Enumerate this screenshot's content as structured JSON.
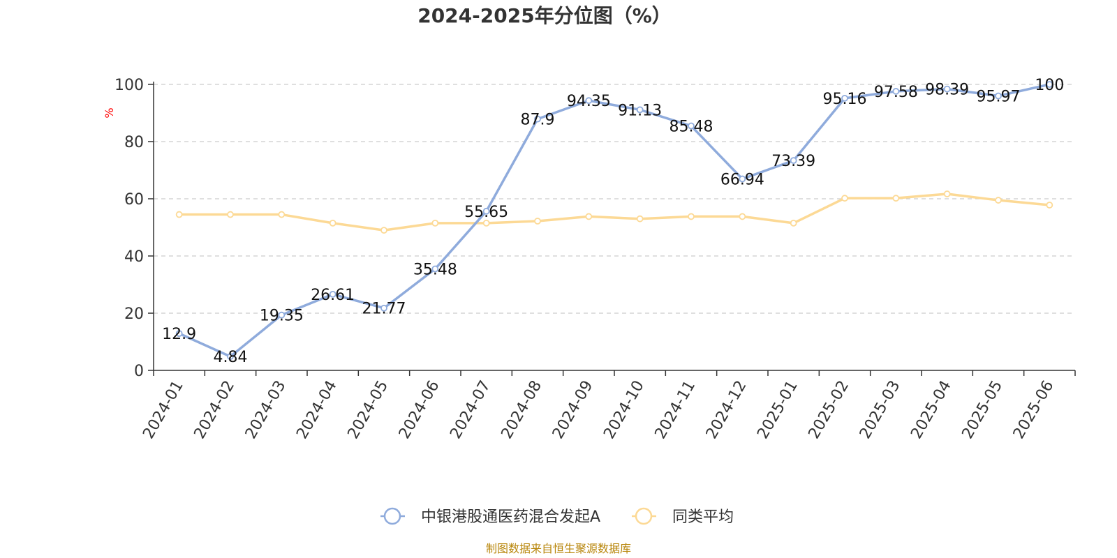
{
  "chart_data": {
    "type": "line",
    "title": "2024-2025年分位图（%）",
    "ylabel": "%",
    "xlabel": "",
    "categories": [
      "2024-01",
      "2024-02",
      "2024-03",
      "2024-04",
      "2024-05",
      "2024-06",
      "2024-07",
      "2024-08",
      "2024-09",
      "2024-10",
      "2024-11",
      "2024-12",
      "2025-01",
      "2025-02",
      "2025-03",
      "2025-04",
      "2025-05",
      "2025-06"
    ],
    "ylim": [
      0,
      100
    ],
    "yticks": [
      0,
      20,
      40,
      60,
      80,
      100
    ],
    "grid": true,
    "legend_position": "bottom",
    "series": [
      {
        "name": "中银港股通医药混合发起A",
        "color": "#8fabdc",
        "show_labels": true,
        "values": [
          12.9,
          4.84,
          19.35,
          26.61,
          21.77,
          35.48,
          55.65,
          87.9,
          94.35,
          91.13,
          85.48,
          66.94,
          73.39,
          95.16,
          97.58,
          98.39,
          95.97,
          100
        ],
        "labels": [
          "12.9",
          "4.84",
          "19.35",
          "26.61",
          "21.77",
          "35.48",
          "55.65",
          "87.9",
          "94.35",
          "91.13",
          "85.48",
          "66.94",
          "73.39",
          "95.16",
          "97.58",
          "98.39",
          "95.97",
          "100"
        ]
      },
      {
        "name": "同类平均",
        "color": "#fcd995",
        "show_labels": false,
        "values": [
          54.5,
          54.5,
          54.5,
          51.5,
          49,
          51.5,
          51.5,
          52.2,
          53.8,
          53,
          53.8,
          53.8,
          51.5,
          60.2,
          60.2,
          61.7,
          59.5,
          57.8
        ]
      }
    ]
  },
  "source_text": "制图数据来自恒生聚源数据库"
}
